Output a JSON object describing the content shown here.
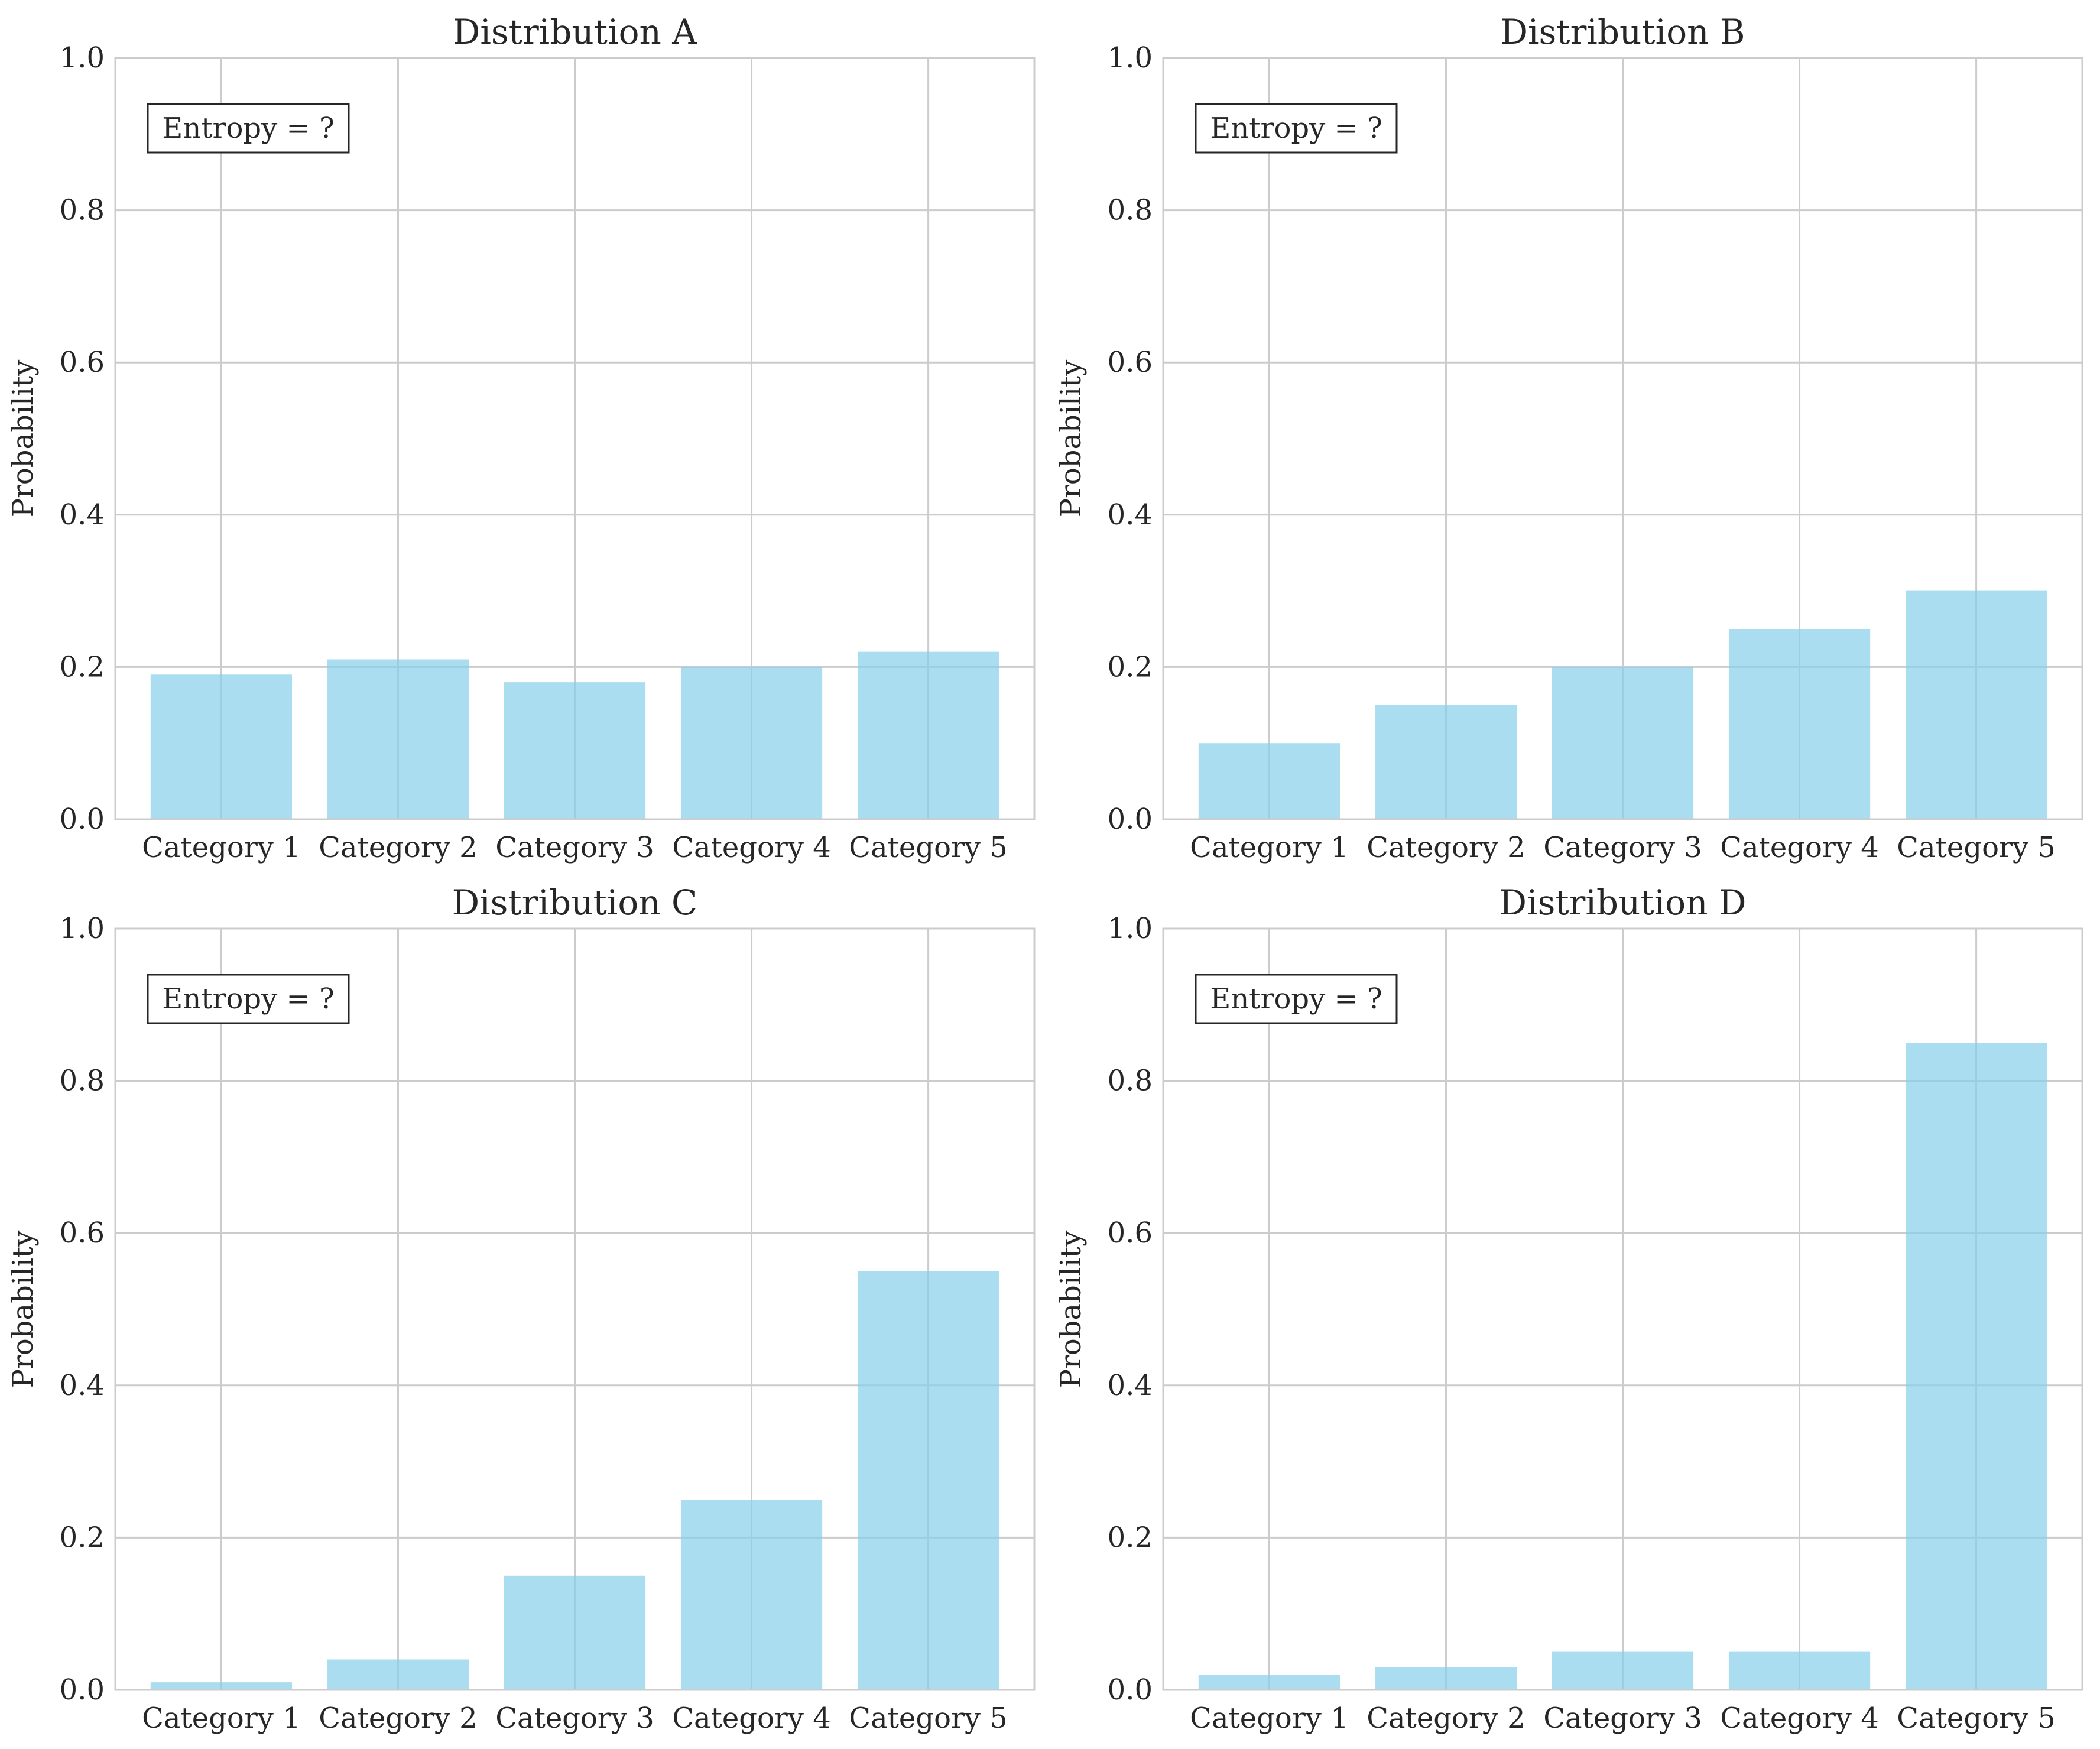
{
  "chart_data": [
    {
      "type": "bar",
      "title": "Distribution A",
      "ylabel": "Probability",
      "xlabel": "",
      "ylim": [
        0,
        1
      ],
      "yticks": [
        0.0,
        0.2,
        0.4,
        0.6,
        0.8,
        1.0
      ],
      "grid": true,
      "bar_color": "#87CEEB",
      "categories": [
        "Category 1",
        "Category 2",
        "Category 3",
        "Category 4",
        "Category 5"
      ],
      "values": [
        0.19,
        0.21,
        0.18,
        0.2,
        0.22
      ],
      "annotation": "Entropy = ?"
    },
    {
      "type": "bar",
      "title": "Distribution B",
      "ylabel": "Probability",
      "xlabel": "",
      "ylim": [
        0,
        1
      ],
      "yticks": [
        0.0,
        0.2,
        0.4,
        0.6,
        0.8,
        1.0
      ],
      "grid": true,
      "bar_color": "#87CEEB",
      "categories": [
        "Category 1",
        "Category 2",
        "Category 3",
        "Category 4",
        "Category 5"
      ],
      "values": [
        0.1,
        0.15,
        0.2,
        0.25,
        0.3
      ],
      "annotation": "Entropy = ?"
    },
    {
      "type": "bar",
      "title": "Distribution C",
      "ylabel": "Probability",
      "xlabel": "",
      "ylim": [
        0,
        1
      ],
      "yticks": [
        0.0,
        0.2,
        0.4,
        0.6,
        0.8,
        1.0
      ],
      "grid": true,
      "bar_color": "#87CEEB",
      "categories": [
        "Category 1",
        "Category 2",
        "Category 3",
        "Category 4",
        "Category 5"
      ],
      "values": [
        0.01,
        0.04,
        0.15,
        0.25,
        0.55
      ],
      "annotation": "Entropy = ?"
    },
    {
      "type": "bar",
      "title": "Distribution D",
      "ylabel": "Probability",
      "xlabel": "",
      "ylim": [
        0,
        1
      ],
      "yticks": [
        0.0,
        0.2,
        0.4,
        0.6,
        0.8,
        1.0
      ],
      "grid": true,
      "bar_color": "#87CEEB",
      "categories": [
        "Category 1",
        "Category 2",
        "Category 3",
        "Category 4",
        "Category 5"
      ],
      "values": [
        0.02,
        0.03,
        0.05,
        0.05,
        0.85
      ],
      "annotation": "Entropy = ?"
    }
  ]
}
